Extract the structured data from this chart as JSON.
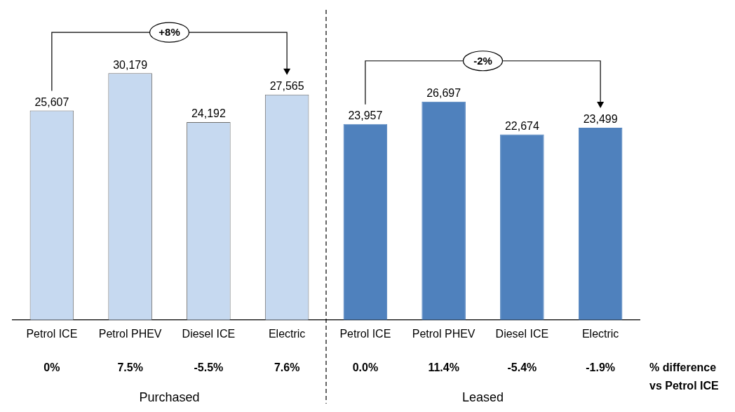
{
  "chart_data": {
    "type": "bar",
    "categories": [
      "Petrol ICE",
      "Petrol PHEV",
      "Diesel ICE",
      "Electric",
      "Petrol ICE",
      "Petrol PHEV",
      "Diesel ICE",
      "Electric"
    ],
    "values": [
      25607,
      30179,
      24192,
      27565,
      23957,
      26697,
      22674,
      23499
    ],
    "colors": [
      "#c6d9f0",
      "#c6d9f0",
      "#c6d9f0",
      "#c6d9f0",
      "#4f81bd",
      "#4f81bd",
      "#4f81bd",
      "#4f81bd"
    ],
    "value_labels": [
      "25,607",
      "30,179",
      "24,192",
      "27,565",
      "23,957",
      "26,697",
      "22,674",
      "23,499"
    ],
    "annotations": [
      "0%",
      "7.5%",
      "-5.5%",
      "7.6%",
      "0.0%",
      "11.4%",
      "-5.4%",
      "-1.9%",
      "% difference\nvs Petrol ICE",
      "+8%",
      "-2%",
      "Purchased",
      "Leased"
    ]
  }
}
